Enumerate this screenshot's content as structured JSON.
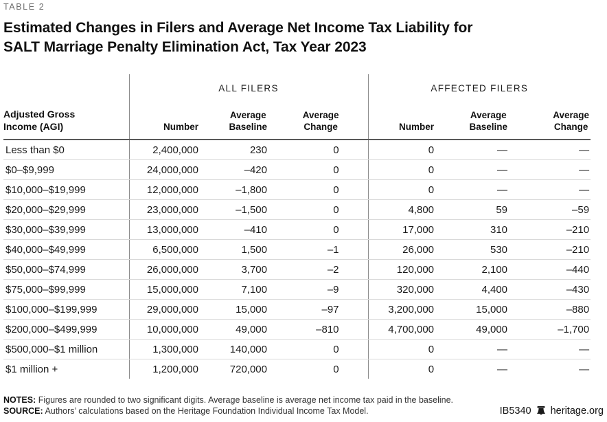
{
  "kicker": "TABLE 2",
  "title_line1": "Estimated Changes in Filers and Average Net Income Tax Liability for",
  "title_line2": "SALT Marriage Penalty Elimination Act, Tax Year 2023",
  "table": {
    "group_headers": [
      "ALL FILERS",
      "AFFECTED FILERS"
    ],
    "agi_header": "Adjusted Gross\nIncome (AGI)",
    "col_headers": [
      "Number",
      "Average\nBaseline",
      "Average\nChange",
      "Number",
      "Average\nBaseline",
      "Average\nChange"
    ],
    "rows": [
      {
        "agi": "Less than $0",
        "all": [
          "2,400,000",
          "230",
          "0"
        ],
        "affected": [
          "0",
          "—",
          "—"
        ]
      },
      {
        "agi": "$0–$9,999",
        "all": [
          "24,000,000",
          "–420",
          "0"
        ],
        "affected": [
          "0",
          "—",
          "—"
        ]
      },
      {
        "agi": "$10,000–$19,999",
        "all": [
          "12,000,000",
          "–1,800",
          "0"
        ],
        "affected": [
          "0",
          "—",
          "—"
        ]
      },
      {
        "agi": "$20,000–$29,999",
        "all": [
          "23,000,000",
          "–1,500",
          "0"
        ],
        "affected": [
          "4,800",
          "59",
          "–59"
        ]
      },
      {
        "agi": "$30,000–$39,999",
        "all": [
          "13,000,000",
          "–410",
          "0"
        ],
        "affected": [
          "17,000",
          "310",
          "–210"
        ]
      },
      {
        "agi": "$40,000–$49,999",
        "all": [
          "6,500,000",
          "1,500",
          "–1"
        ],
        "affected": [
          "26,000",
          "530",
          "–210"
        ]
      },
      {
        "agi": "$50,000–$74,999",
        "all": [
          "26,000,000",
          "3,700",
          "–2"
        ],
        "affected": [
          "120,000",
          "2,100",
          "–440"
        ]
      },
      {
        "agi": "$75,000–$99,999",
        "all": [
          "15,000,000",
          "7,100",
          "–9"
        ],
        "affected": [
          "320,000",
          "4,400",
          "–430"
        ]
      },
      {
        "agi": "$100,000–$199,999",
        "all": [
          "29,000,000",
          "15,000",
          "–97"
        ],
        "affected": [
          "3,200,000",
          "15,000",
          "–880"
        ]
      },
      {
        "agi": "$200,000–$499,999",
        "all": [
          "10,000,000",
          "49,000",
          "–810"
        ],
        "affected": [
          "4,700,000",
          "49,000",
          "–1,700"
        ]
      },
      {
        "agi": "$500,000–$1 million",
        "all": [
          "1,300,000",
          "140,000",
          "0"
        ],
        "affected": [
          "0",
          "—",
          "—"
        ]
      },
      {
        "agi": "$1 million +",
        "all": [
          "1,200,000",
          "720,000",
          "0"
        ],
        "affected": [
          "0",
          "—",
          "—"
        ]
      }
    ]
  },
  "footer": {
    "notes_label": "NOTES:",
    "notes_text": " Figures are rounded to two significant digits. Average baseline is average net income tax paid in the baseline.",
    "source_label": "SOURCE:",
    "source_text": " Authors’ calculations based on the Heritage Foundation Individual Income Tax Model.",
    "doc_id": "IB5340",
    "site": "heritage.org",
    "logo_icon": "liberty-bell-icon"
  },
  "colors": {
    "title": "#111111",
    "kicker": "#6e6e6e",
    "header_rule": "#595959",
    "group_divider": "#8c8c8c",
    "row_divider": "#d9d9d9"
  }
}
